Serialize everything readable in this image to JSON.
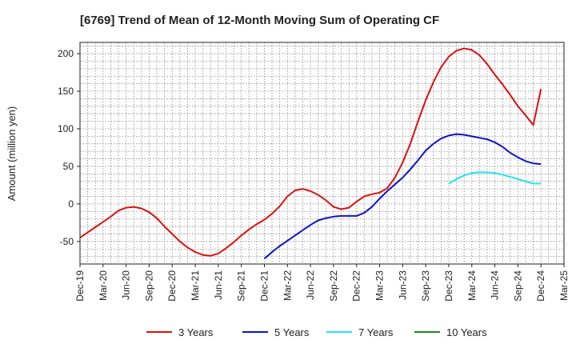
{
  "chart_data": {
    "type": "line",
    "title": "[6769]  Trend of Mean of 12-Month Moving Sum of Operating CF",
    "xlabel": "",
    "ylabel": "Amount (million yen)",
    "ylim": [
      -80,
      215
    ],
    "yticks": [
      -50,
      0,
      50,
      100,
      150,
      200
    ],
    "ytick_labels": [
      "-50",
      "0",
      "50",
      "100",
      "150",
      "200"
    ],
    "xlim": [
      0,
      63
    ],
    "xtick_labels": [
      "Dec-19",
      "Mar-20",
      "Jun-20",
      "Sep-20",
      "Dec-20",
      "Mar-21",
      "Jun-21",
      "Sep-21",
      "Dec-21",
      "Mar-22",
      "Jun-22",
      "Sep-22",
      "Dec-22",
      "Mar-23",
      "Jun-23",
      "Sep-23",
      "Dec-23",
      "Mar-24",
      "Jun-24",
      "Sep-24",
      "Dec-24",
      "Mar-25"
    ],
    "grid": true,
    "legend_position": "bottom",
    "series": [
      {
        "name": "3 Years",
        "color": "#dd1111",
        "x": [
          0,
          1,
          2,
          3,
          4,
          5,
          6,
          7,
          8,
          9,
          10,
          11,
          12,
          13,
          14,
          15,
          16,
          17,
          18,
          19,
          20,
          21,
          22,
          23,
          24,
          25,
          26,
          27,
          28,
          29,
          30,
          31,
          32,
          33,
          34,
          35,
          36,
          37,
          38,
          39,
          40,
          41,
          42,
          43,
          44,
          45,
          46,
          47,
          48,
          49,
          50,
          51,
          52,
          53,
          54,
          55,
          56,
          57,
          58,
          59,
          60
        ],
        "values": [
          -45,
          -38,
          -31,
          -24,
          -17,
          -9,
          -5,
          -4,
          -6,
          -11,
          -19,
          -30,
          -40,
          -50,
          -58,
          -64,
          -68,
          -69,
          -66,
          -59,
          -51,
          -42,
          -34,
          -27,
          -21,
          -13,
          -3,
          10,
          18,
          20,
          17,
          12,
          5,
          -4,
          -7,
          -5,
          3,
          10,
          13,
          15,
          21,
          35,
          55,
          80,
          110,
          138,
          162,
          182,
          196,
          204,
          207,
          205,
          198,
          186,
          172,
          159,
          145,
          130,
          118,
          105,
          153
        ]
      },
      {
        "name": "5 Years",
        "color": "#1111cc",
        "x": [
          24,
          25,
          26,
          27,
          28,
          29,
          30,
          31,
          32,
          33,
          34,
          35,
          36,
          37,
          38,
          39,
          40,
          41,
          42,
          43,
          44,
          45,
          46,
          47,
          48,
          49,
          50,
          51,
          52,
          53,
          54,
          55,
          56,
          57,
          58,
          59,
          60
        ],
        "values": [
          -73,
          -64,
          -56,
          -49,
          -42,
          -35,
          -28,
          -22,
          -19,
          -17,
          -16,
          -16,
          -16,
          -12,
          -4,
          7,
          17,
          26,
          35,
          46,
          58,
          71,
          80,
          87,
          91,
          93,
          92,
          90,
          88,
          86,
          82,
          76,
          68,
          62,
          57,
          54,
          53
        ]
      },
      {
        "name": "7 Years",
        "color": "#22e5ee",
        "x": [
          48,
          49,
          50,
          51,
          52,
          53,
          54,
          55,
          56,
          57,
          58,
          59,
          60
        ],
        "values": [
          27,
          33,
          38,
          41,
          42,
          42,
          41,
          39,
          36,
          33,
          30,
          27,
          27
        ]
      },
      {
        "name": "10 Years",
        "color": "#228822",
        "x": [],
        "values": []
      }
    ]
  }
}
